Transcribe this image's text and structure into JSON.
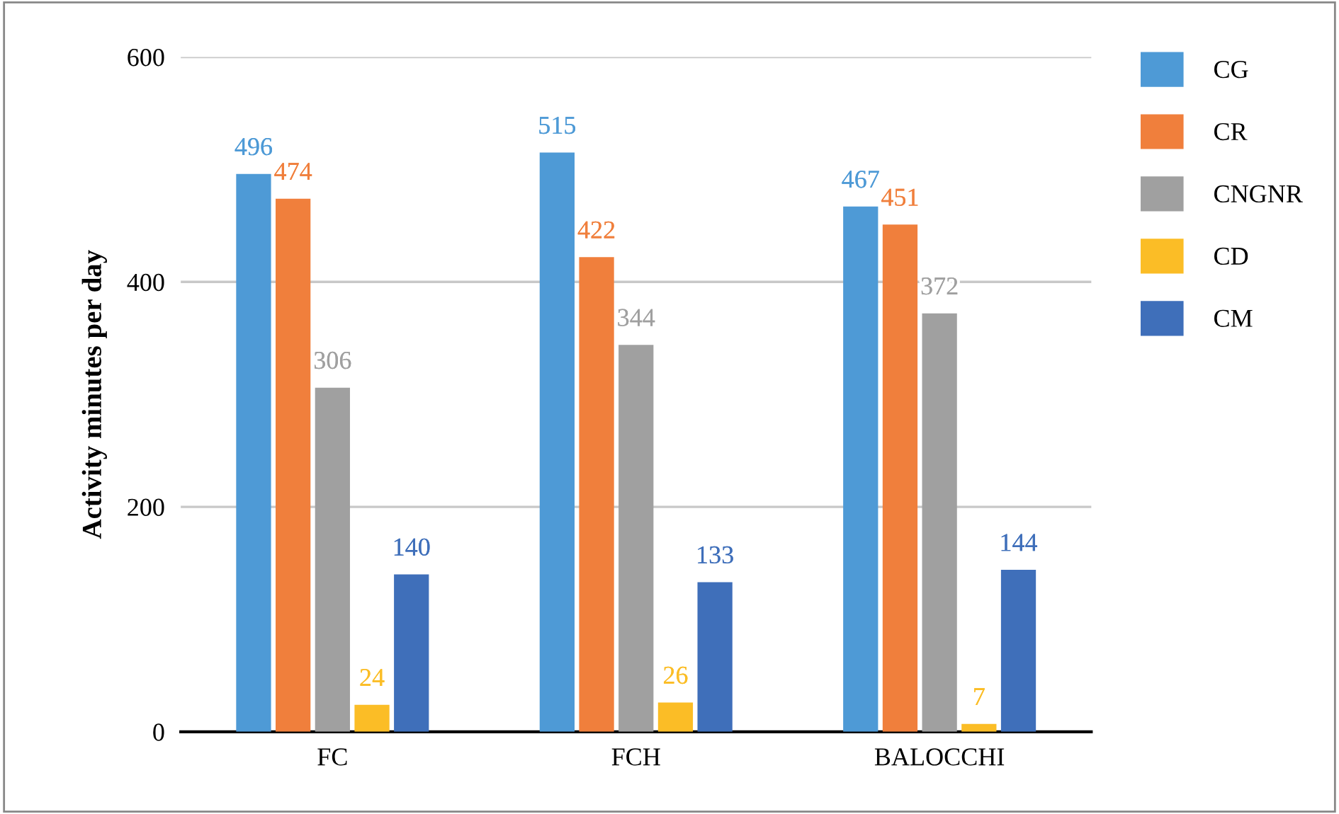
{
  "chart_data": {
    "type": "bar",
    "ylabel": "Activity minutes per day",
    "categories": [
      "FC",
      "FCH",
      "BALOCCHI"
    ],
    "series": [
      {
        "name": "CG",
        "color": "#4e9ad6",
        "values": [
          496,
          515,
          467
        ]
      },
      {
        "name": "CR",
        "color": "#f07f3c",
        "values": [
          474,
          422,
          451
        ]
      },
      {
        "name": "CNGNR",
        "color": "#a0a0a0",
        "values": [
          306,
          344,
          372
        ]
      },
      {
        "name": "CD",
        "color": "#fbbd26",
        "values": [
          24,
          26,
          7
        ]
      },
      {
        "name": "CM",
        "color": "#3f6fba",
        "values": [
          140,
          133,
          144
        ]
      }
    ],
    "ylim": [
      0,
      600
    ],
    "yticks": [
      0,
      200,
      400,
      600
    ],
    "grid": "y",
    "legend": "right",
    "data_labels": true
  }
}
